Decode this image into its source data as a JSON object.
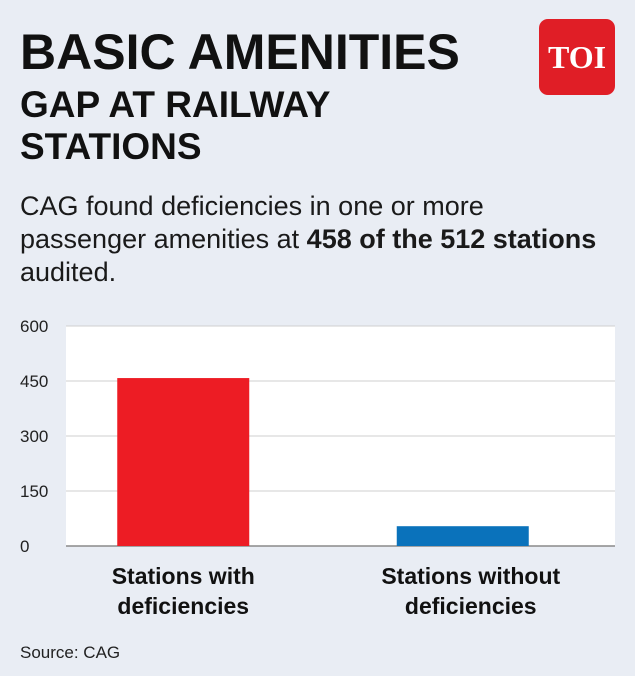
{
  "header": {
    "title": "BASIC AMENITIES",
    "subtitle": "GAP AT RAILWAY STATIONS",
    "logo_text": "TOI"
  },
  "description": {
    "lead": "CAG found deficiencies in one or more passenger amenities at ",
    "highlight": "458 of the 512 stations",
    "tail": " audited."
  },
  "source": "Source: CAG",
  "chart_data": {
    "type": "bar",
    "categories": [
      [
        "Stations with",
        "deficiencies"
      ],
      [
        "Stations without",
        "deficiencies"
      ]
    ],
    "values": [
      458,
      54
    ],
    "colors": [
      "#ed1c24",
      "#0a72bb"
    ],
    "ylim": [
      0,
      600
    ],
    "yticks": [
      "600",
      "450",
      "300",
      "150",
      "0"
    ],
    "grid": true
  }
}
